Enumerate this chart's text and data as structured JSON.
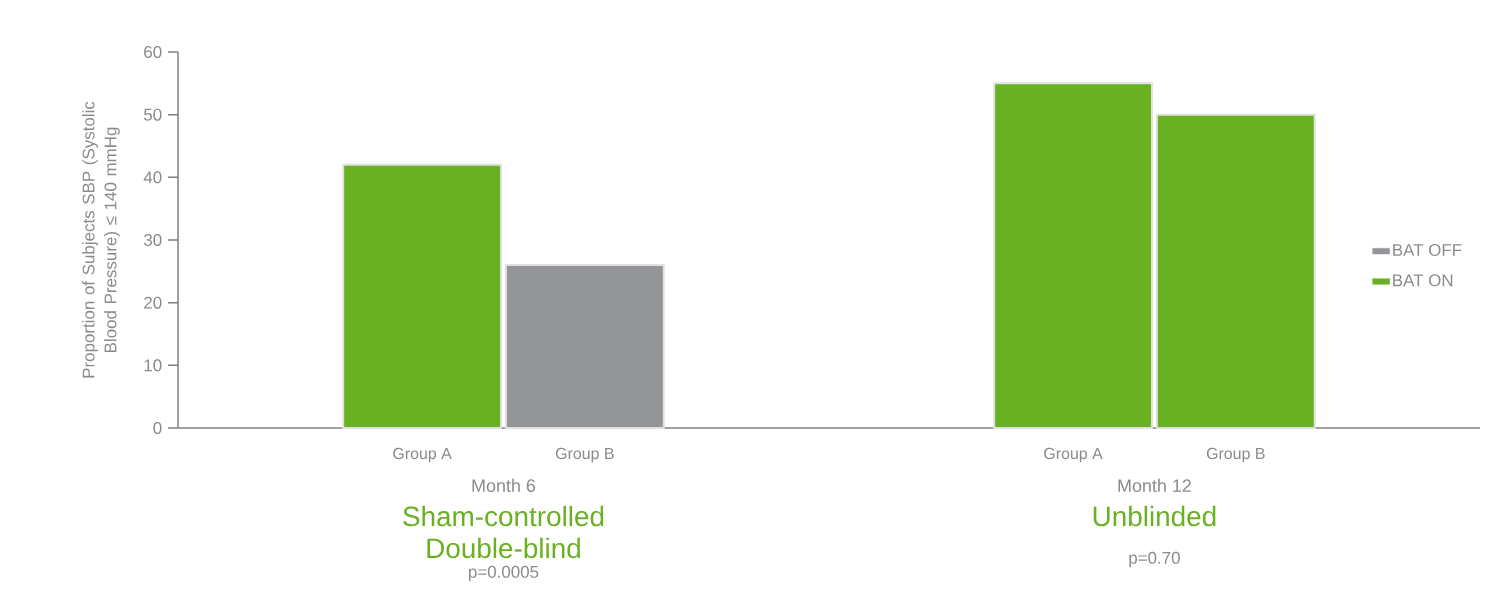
{
  "chart_data": {
    "type": "bar",
    "ylabel": "Proportion of Subjects SBP (Systolic Blood Pressure) ≤ 140 mmHg",
    "categories": [
      null,
      "Group A",
      "Group B",
      null,
      null,
      "Group A",
      "Group B",
      null
    ],
    "series": [
      {
        "name": "BAT OFF",
        "color": "#939598",
        "values": [
          null,
          null,
          26,
          null,
          null,
          null,
          null,
          null
        ]
      },
      {
        "name": "BAT ON",
        "color": "#6ab023",
        "values": [
          null,
          42,
          null,
          null,
          null,
          55,
          50,
          null
        ]
      }
    ],
    "ylim": [
      0,
      60
    ],
    "yticks": [
      0,
      10,
      20,
      30,
      40,
      50,
      60
    ],
    "legend": "right",
    "annotations": [
      "Month 6",
      "Sham-controlled Double-blind",
      "p=0.0005",
      "Month 12",
      "Unblinded",
      "p=0.70"
    ]
  }
}
